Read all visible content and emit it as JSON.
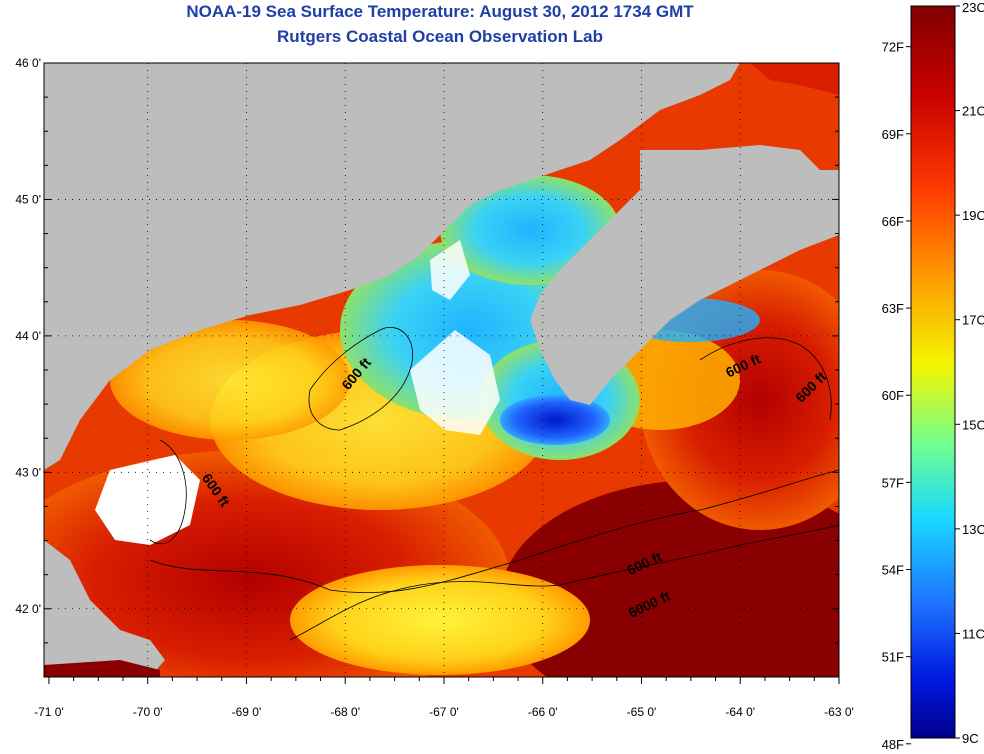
{
  "title": {
    "line1": "NOAA-19 Sea Surface Temperature:  August 30, 2012 1734 GMT",
    "line2": "Rutgers Coastal Ocean Observation Lab"
  },
  "map": {
    "lat_labels": [
      "46 0'",
      "45 0'",
      "44 0'",
      "43 0'",
      "42 0'"
    ],
    "lon_labels": [
      "-71 0'",
      "-70 0'",
      "-69 0'",
      "-68 0'",
      "-67 0'",
      "-66 0'",
      "-65 0'",
      "-64 0'",
      "-63 0'"
    ],
    "contour_labels": [
      {
        "text": "600 ft",
        "lon": -67.85,
        "lat": 43.7,
        "rot": -50
      },
      {
        "text": "600 ft",
        "lon": -69.35,
        "lat": 42.85,
        "rot": 55
      },
      {
        "text": "600 ft",
        "lon": -63.95,
        "lat": 43.75,
        "rot": -25
      },
      {
        "text": "600 ft",
        "lon": -63.25,
        "lat": 43.6,
        "rot": -45
      },
      {
        "text": "600 ft",
        "lon": -64.95,
        "lat": 42.3,
        "rot": -25
      },
      {
        "text": "6000 ft",
        "lon": -64.9,
        "lat": 42.0,
        "rot": -25
      }
    ]
  },
  "colorbar": {
    "fahrenheit": [
      "72F",
      "69F",
      "66F",
      "63F",
      "60F",
      "57F",
      "54F",
      "51F",
      "48F"
    ],
    "celsius": [
      "23C",
      "21C",
      "19C",
      "17C",
      "15C",
      "13C",
      "11C",
      "9C"
    ]
  },
  "colors": {
    "land": "#bdbdbd",
    "title": "#1f3fa8",
    "cold": "#00008c",
    "warm": "#7f0000"
  }
}
